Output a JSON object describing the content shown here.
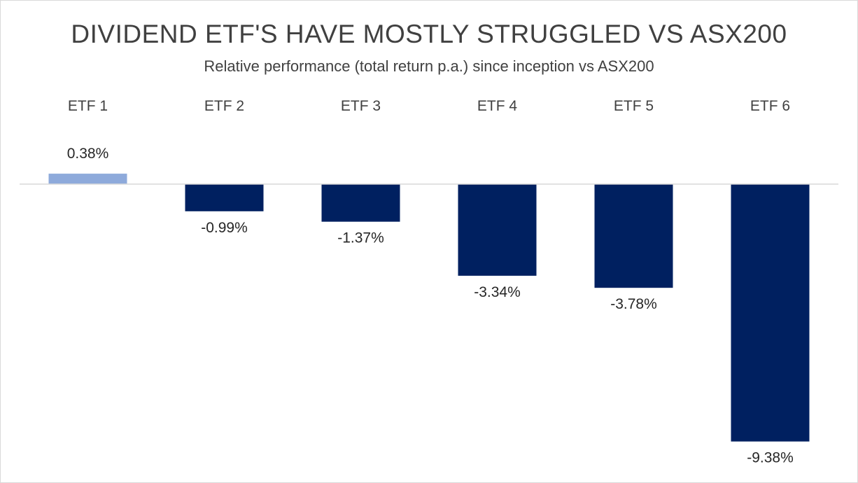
{
  "chart_data": {
    "type": "bar",
    "title": "DIVIDEND ETF'S HAVE MOSTLY STRUGGLED VS ASX200",
    "subtitle": "Relative performance (total return p.a.) since inception vs ASX200",
    "categories": [
      "ETF 1",
      "ETF 2",
      "ETF 3",
      "ETF 4",
      "ETF 5",
      "ETF 6"
    ],
    "values": [
      0.38,
      -0.99,
      -1.37,
      -3.34,
      -3.78,
      -9.38
    ],
    "data_labels": [
      "0.38%",
      "-0.99%",
      "-1.37%",
      "-3.34%",
      "-3.78%",
      "-9.38%"
    ],
    "xlabel": "",
    "ylabel": "",
    "ylim": [
      -9.38,
      0.38
    ],
    "category_axis_position": "top",
    "grid": false,
    "legend": "none",
    "colors": {
      "positive": "#8eaadb",
      "negative": "#002060",
      "axis": "#d9d9d9"
    }
  }
}
